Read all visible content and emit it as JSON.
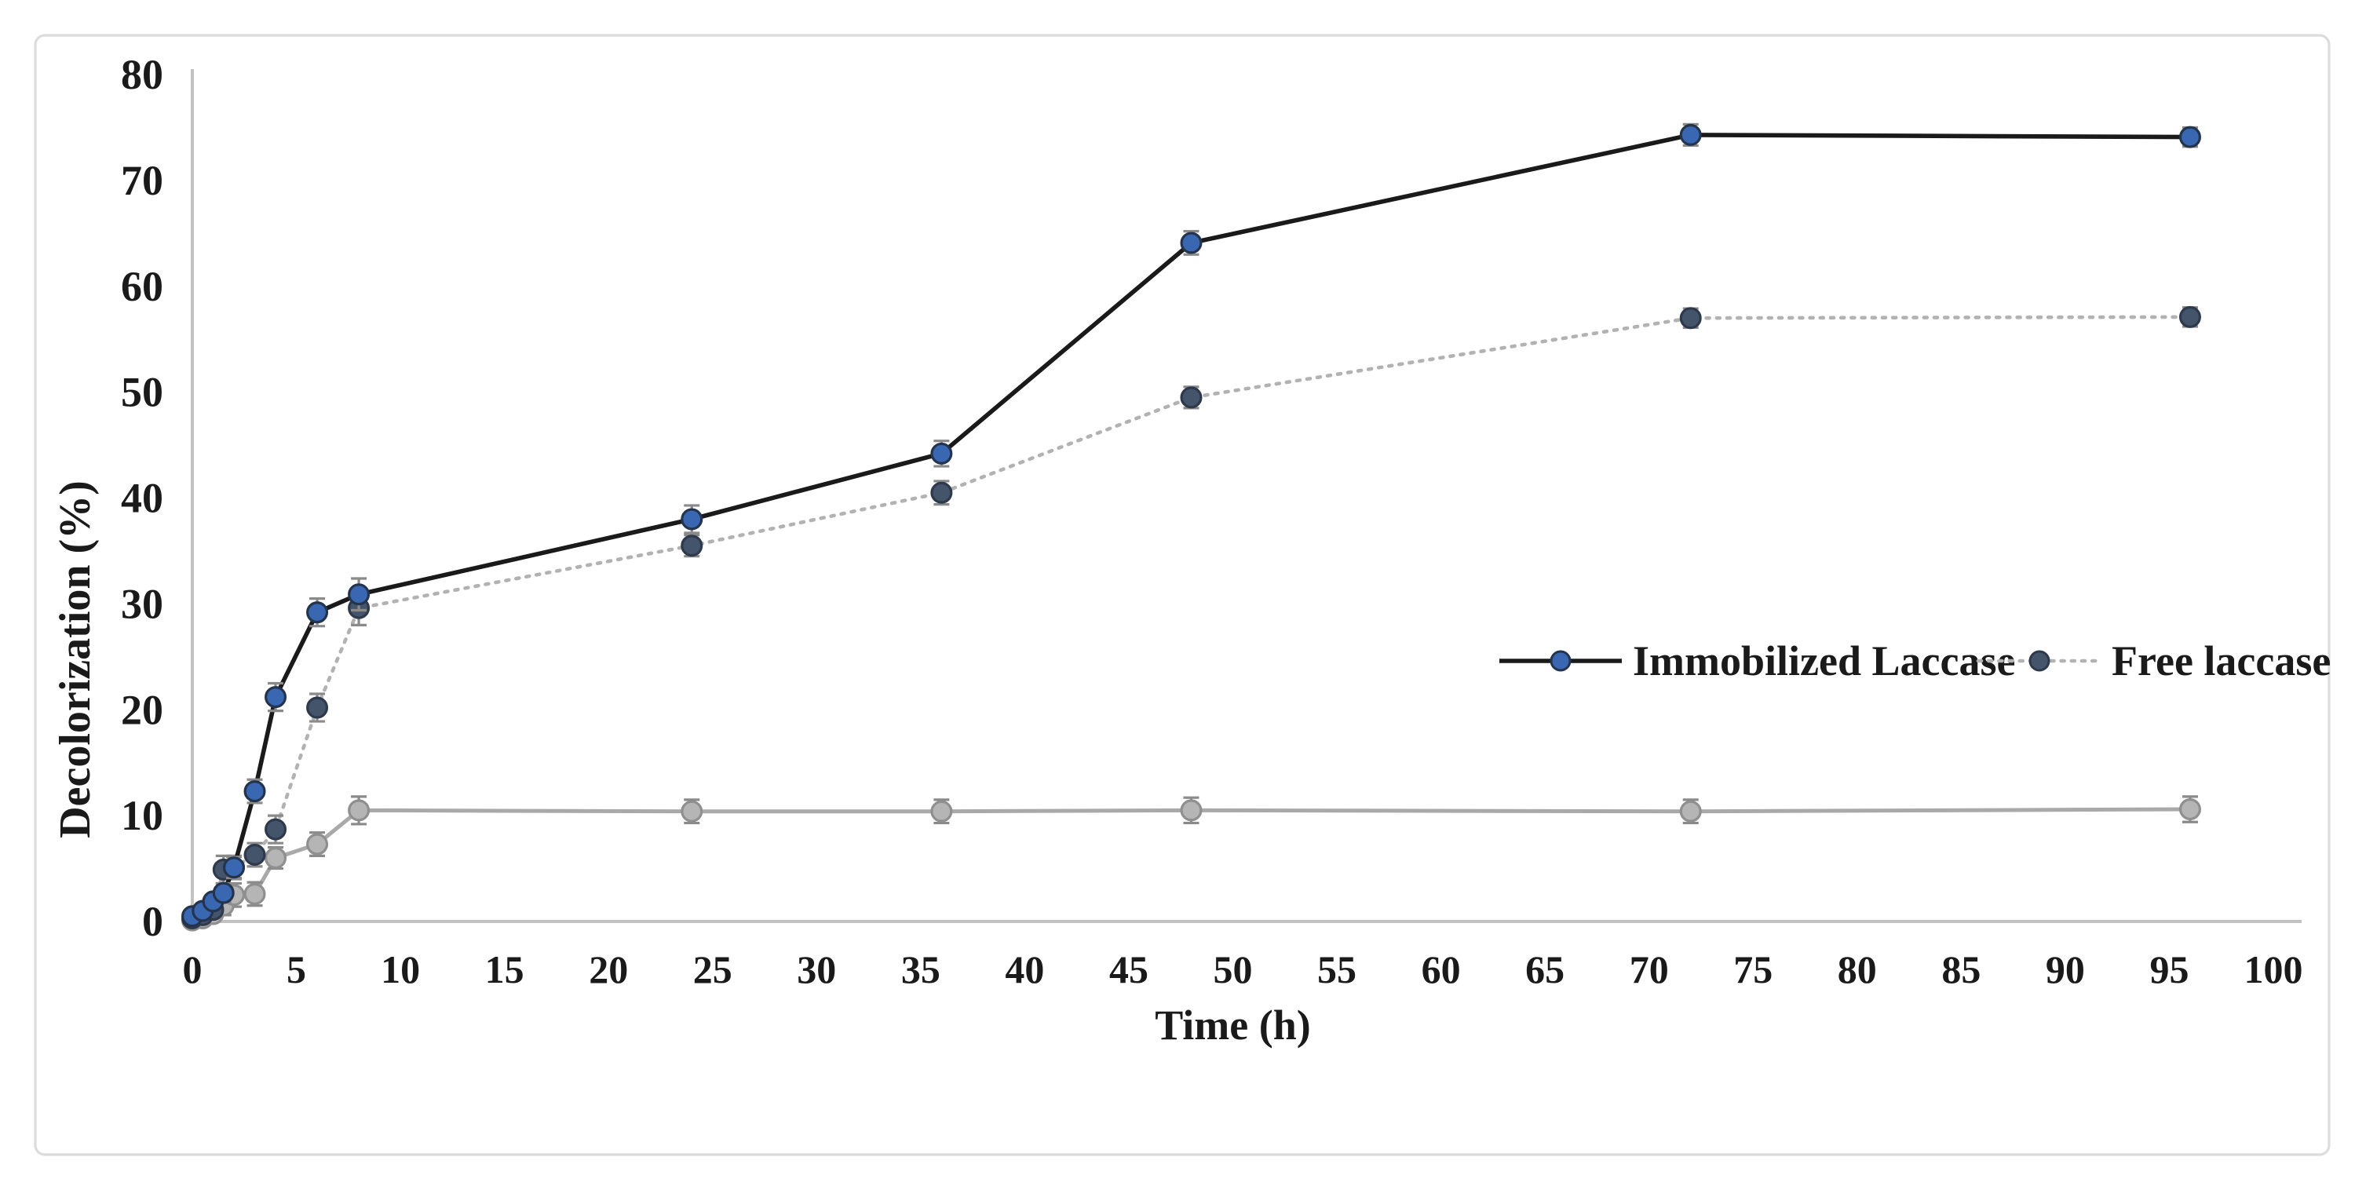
{
  "figure": {
    "background": "#ffffff",
    "frame_color": "#dcdcdc",
    "text_color": "#1a1a1a"
  },
  "chart_data": {
    "type": "line",
    "title": "",
    "xlabel": "Time (h)",
    "ylabel": "Decolorization (%)",
    "xlim": [
      0,
      100
    ],
    "ylim": [
      0,
      80
    ],
    "x_ticks": [
      0,
      5,
      10,
      15,
      20,
      25,
      30,
      35,
      40,
      45,
      50,
      55,
      60,
      65,
      70,
      75,
      80,
      85,
      90,
      95,
      100
    ],
    "y_ticks": [
      0,
      10,
      20,
      30,
      40,
      50,
      60,
      70,
      80
    ],
    "grid": "off",
    "axis_color": "#c2c2c2",
    "error_bar_color": "#8a8a8a",
    "legend_position": "inside-right-middle",
    "x": [
      0,
      0.5,
      1,
      1.5,
      2,
      3,
      4,
      6,
      8,
      24,
      36,
      48,
      72,
      96
    ],
    "series": [
      {
        "name": "Immobilized Laccase",
        "in_legend": true,
        "line_style": "solid",
        "line_color": "#1a1a1a",
        "line_width": 2.8,
        "marker_fill": "#3a67b1",
        "marker_edge": "#24344d",
        "values": [
          0.5,
          1.0,
          1.9,
          2.7,
          5.1,
          12.3,
          21.2,
          29.2,
          30.9,
          38.0,
          44.2,
          64.1,
          74.3,
          74.1
        ],
        "errors": [
          0.4,
          0.4,
          0.5,
          0.9,
          1.0,
          1.1,
          1.3,
          1.3,
          1.5,
          1.3,
          1.2,
          1.1,
          1.0,
          0.9
        ]
      },
      {
        "name": "Free laccase",
        "in_legend": true,
        "line_style": "dotted",
        "line_color": "#b2b2b2",
        "line_width": 2.3,
        "marker_fill": "#44546a",
        "marker_edge": "#2e3a4c",
        "values": [
          0.3,
          0.6,
          1.1,
          4.9,
          5.1,
          6.3,
          8.7,
          20.2,
          29.6,
          35.5,
          40.5,
          49.5,
          57.0,
          57.1
        ],
        "errors": [
          0.3,
          0.4,
          0.5,
          1.3,
          1.1,
          1.1,
          1.3,
          1.3,
          1.6,
          1.0,
          1.1,
          1.0,
          0.9,
          0.9
        ]
      },
      {
        "name": "unlabeled-gray-control",
        "in_legend": false,
        "line_style": "solid",
        "line_color": "#a9a9a9",
        "line_width": 2.5,
        "marker_fill": "#b5b5b5",
        "marker_edge": "#8f8f8f",
        "values": [
          0.1,
          0.3,
          0.7,
          1.5,
          2.5,
          2.6,
          6.0,
          7.3,
          10.5,
          10.4,
          10.4,
          10.5,
          10.4,
          10.6
        ],
        "errors": [
          0.3,
          0.3,
          0.5,
          0.9,
          1.1,
          1.1,
          1.0,
          1.1,
          1.3,
          1.1,
          1.1,
          1.2,
          1.1,
          1.2
        ]
      }
    ],
    "legend": {
      "items": [
        {
          "label": "Immobilized Laccase",
          "series": 0
        },
        {
          "label": "Free laccase",
          "series": 1
        }
      ]
    }
  }
}
